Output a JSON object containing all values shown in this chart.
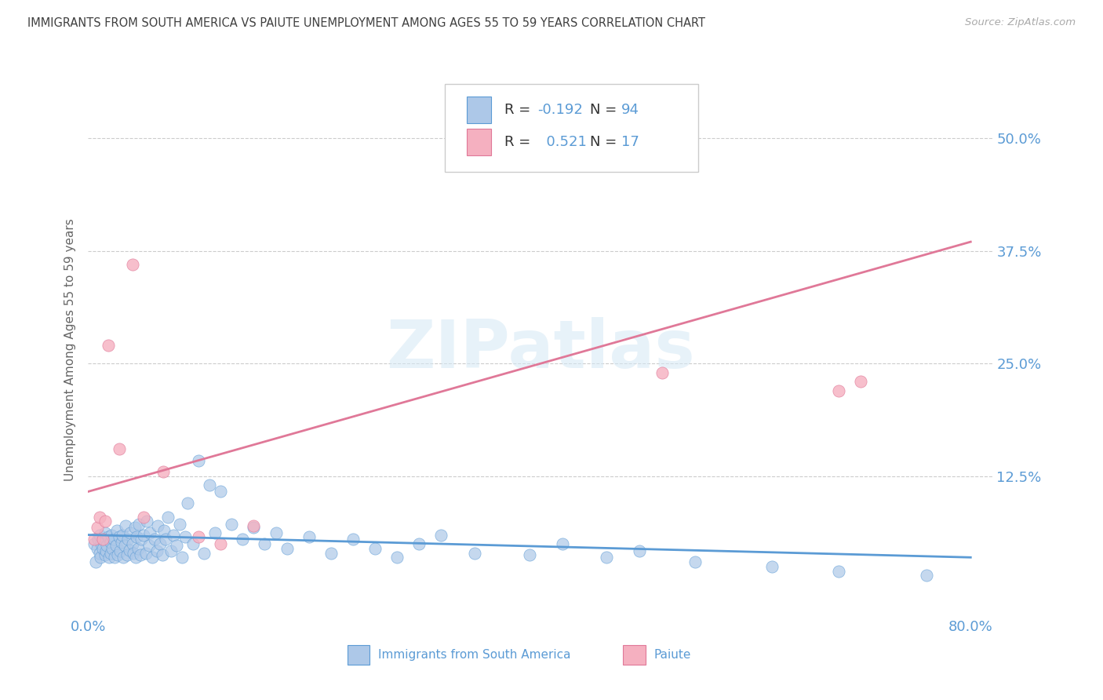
{
  "title": "IMMIGRANTS FROM SOUTH AMERICA VS PAIUTE UNEMPLOYMENT AMONG AGES 55 TO 59 YEARS CORRELATION CHART",
  "source": "Source: ZipAtlas.com",
  "ylabel": "Unemployment Among Ages 55 to 59 years",
  "xlim": [
    0.0,
    0.82
  ],
  "ylim": [
    -0.03,
    0.56
  ],
  "ytick_vals": [
    0.0,
    0.125,
    0.25,
    0.375,
    0.5
  ],
  "ytick_labels_right": [
    "",
    "12.5%",
    "25.0%",
    "37.5%",
    "50.0%"
  ],
  "xtick_vals": [
    0.0,
    0.2,
    0.4,
    0.6,
    0.8
  ],
  "xtick_labels": [
    "0.0%",
    "",
    "",
    "",
    "80.0%"
  ],
  "blue_R": -0.192,
  "blue_N": 94,
  "pink_R": 0.521,
  "pink_N": 17,
  "blue_fill": "#adc8e8",
  "pink_fill": "#f5b0c0",
  "blue_edge": "#5b9bd5",
  "pink_edge": "#e07898",
  "axis_label_color": "#5b9bd5",
  "title_color": "#404040",
  "grid_color": "#cccccc",
  "blue_trend_start_x": 0.0,
  "blue_trend_start_y": 0.06,
  "blue_trend_end_x": 0.8,
  "blue_trend_end_y": 0.035,
  "pink_trend_start_x": 0.0,
  "pink_trend_start_y": 0.108,
  "pink_trend_end_x": 0.8,
  "pink_trend_end_y": 0.385,
  "blue_x": [
    0.005,
    0.007,
    0.008,
    0.009,
    0.01,
    0.01,
    0.011,
    0.012,
    0.013,
    0.014,
    0.015,
    0.015,
    0.016,
    0.017,
    0.018,
    0.019,
    0.02,
    0.02,
    0.021,
    0.022,
    0.023,
    0.024,
    0.025,
    0.026,
    0.027,
    0.028,
    0.029,
    0.03,
    0.031,
    0.032,
    0.033,
    0.034,
    0.035,
    0.036,
    0.037,
    0.038,
    0.04,
    0.041,
    0.042,
    0.043,
    0.044,
    0.045,
    0.046,
    0.047,
    0.048,
    0.05,
    0.052,
    0.053,
    0.055,
    0.056,
    0.058,
    0.06,
    0.062,
    0.063,
    0.065,
    0.067,
    0.069,
    0.07,
    0.072,
    0.075,
    0.077,
    0.08,
    0.083,
    0.085,
    0.088,
    0.09,
    0.095,
    0.1,
    0.105,
    0.11,
    0.115,
    0.12,
    0.13,
    0.14,
    0.15,
    0.16,
    0.17,
    0.18,
    0.2,
    0.22,
    0.24,
    0.26,
    0.28,
    0.3,
    0.32,
    0.35,
    0.4,
    0.43,
    0.47,
    0.5,
    0.55,
    0.62,
    0.68,
    0.76
  ],
  "blue_y": [
    0.05,
    0.03,
    0.045,
    0.055,
    0.04,
    0.06,
    0.035,
    0.05,
    0.045,
    0.055,
    0.038,
    0.062,
    0.042,
    0.048,
    0.058,
    0.035,
    0.052,
    0.04,
    0.06,
    0.045,
    0.055,
    0.035,
    0.048,
    0.065,
    0.038,
    0.058,
    0.042,
    0.052,
    0.06,
    0.035,
    0.048,
    0.07,
    0.038,
    0.055,
    0.043,
    0.062,
    0.05,
    0.04,
    0.068,
    0.035,
    0.058,
    0.045,
    0.072,
    0.038,
    0.055,
    0.06,
    0.04,
    0.075,
    0.048,
    0.062,
    0.035,
    0.055,
    0.042,
    0.07,
    0.05,
    0.038,
    0.065,
    0.055,
    0.08,
    0.042,
    0.06,
    0.048,
    0.072,
    0.035,
    0.058,
    0.095,
    0.05,
    0.142,
    0.04,
    0.115,
    0.062,
    0.108,
    0.072,
    0.055,
    0.068,
    0.05,
    0.062,
    0.045,
    0.058,
    0.04,
    0.055,
    0.045,
    0.035,
    0.05,
    0.06,
    0.04,
    0.038,
    0.05,
    0.035,
    0.042,
    0.03,
    0.025,
    0.02,
    0.015
  ],
  "pink_x": [
    0.005,
    0.008,
    0.01,
    0.013,
    0.015,
    0.018,
    0.028,
    0.04,
    0.05,
    0.068,
    0.1,
    0.12,
    0.15,
    0.5,
    0.52,
    0.68,
    0.7
  ],
  "pink_y": [
    0.055,
    0.068,
    0.08,
    0.055,
    0.075,
    0.27,
    0.155,
    0.36,
    0.08,
    0.13,
    0.058,
    0.05,
    0.07,
    0.5,
    0.24,
    0.22,
    0.23
  ]
}
